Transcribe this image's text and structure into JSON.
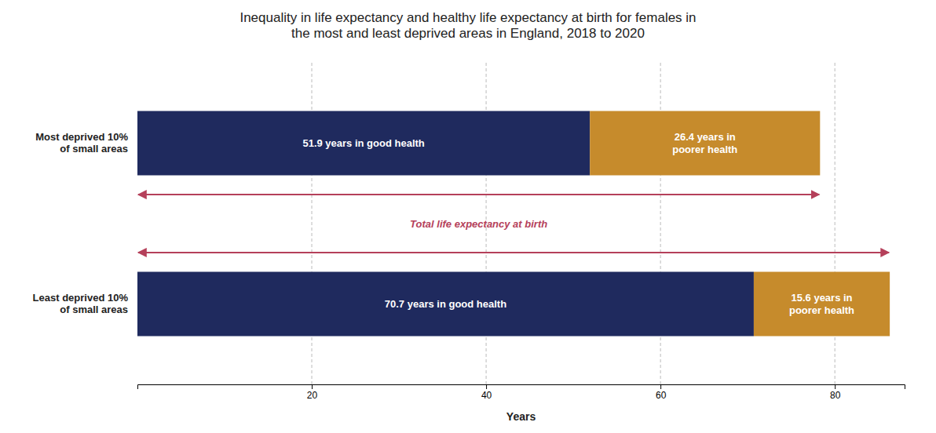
{
  "chart_data": {
    "type": "bar",
    "orientation": "horizontal",
    "stacked": true,
    "title": "Inequality in life expectancy and healthy life expectancy at birth for females in\nthe most and least deprived areas in England, 2018 to 2020",
    "categories": [
      "Most deprived 10%\nof small areas",
      "Least deprived 10%\nof small areas"
    ],
    "series": [
      {
        "color": "#1f2a5e",
        "values": [
          51.9,
          70.7
        ],
        "value_labels": [
          "51.9 years in good health",
          "70.7 years in good health"
        ]
      },
      {
        "color": "#c68b2c",
        "values": [
          26.4,
          15.6
        ],
        "value_labels": [
          "26.4 years in\npoorer health",
          "15.6 years in\npoorer health"
        ]
      }
    ],
    "data_labels": true,
    "totals": [
      78.3,
      86.3
    ],
    "annotations": [
      {
        "text": "Total life expectancy at birth",
        "color": "#b5405a"
      }
    ],
    "xlabel": "Years",
    "xlim": [
      0,
      88
    ],
    "xticks": [
      20,
      40,
      60,
      80
    ],
    "grid": true
  }
}
